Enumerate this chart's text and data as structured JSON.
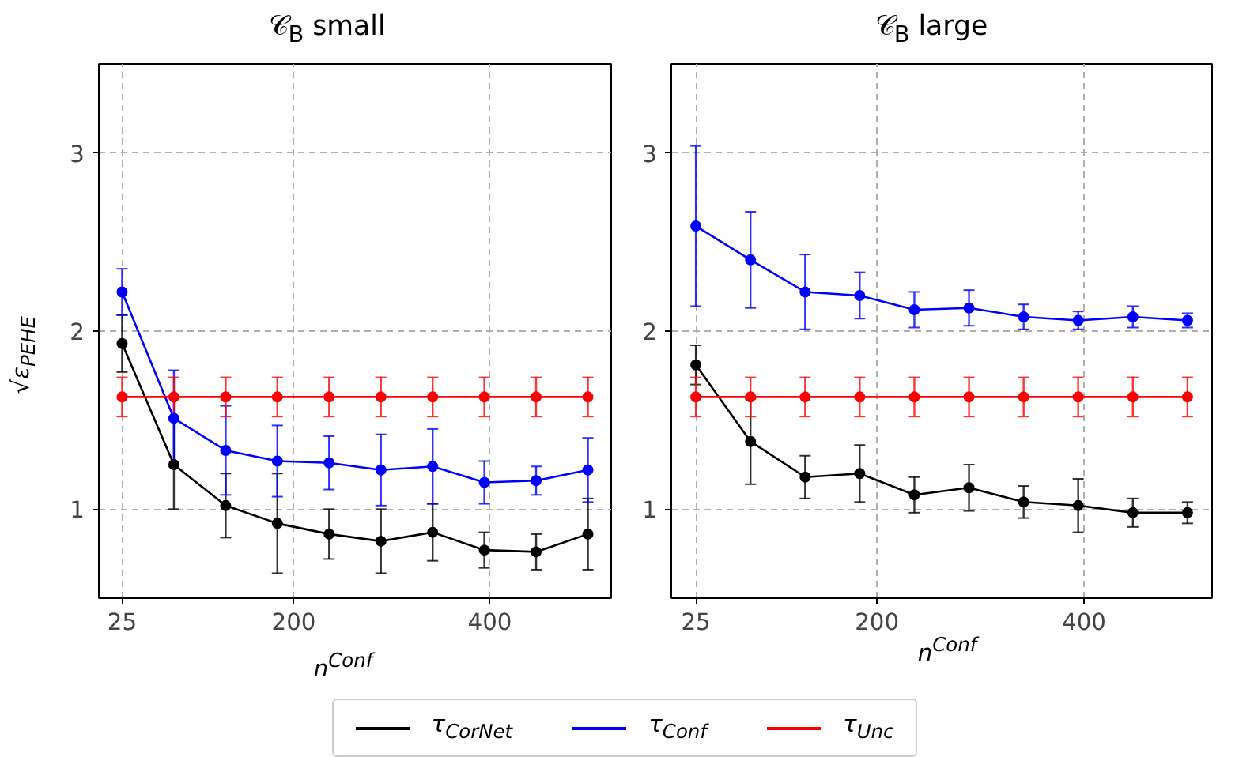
{
  "chart_data": [
    {
      "type": "line",
      "title": "𝒞$_{B}$ small",
      "xlabel": "n$^{Conf}$",
      "ylabel": "√ε$_{PEHE}$",
      "x": [
        25,
        77.8,
        130.6,
        183.3,
        236.1,
        288.9,
        341.7,
        394.4,
        447.2,
        500
      ],
      "xlim": [
        1.25,
        523.75
      ],
      "xticks": [
        25,
        200,
        400
      ],
      "ylim": [
        0.5,
        3.5
      ],
      "yticks": [
        1,
        2,
        3
      ],
      "grid": true,
      "marker": "circle",
      "line_style": "solid",
      "legend": "bottom",
      "series": [
        {
          "name": "τ$_{CorNet}$",
          "color": "#000000",
          "values": [
            1.93,
            1.25,
            1.02,
            0.92,
            0.86,
            0.82,
            0.87,
            0.77,
            0.76,
            0.86
          ],
          "errors": [
            0.16,
            0.25,
            0.18,
            0.28,
            0.14,
            0.18,
            0.16,
            0.1,
            0.1,
            0.2
          ]
        },
        {
          "name": "τ$_{Conf}$",
          "color": "#0000ff",
          "values": [
            2.22,
            1.51,
            1.33,
            1.27,
            1.26,
            1.22,
            1.24,
            1.15,
            1.16,
            1.22
          ],
          "errors": [
            0.13,
            0.27,
            0.25,
            0.2,
            0.15,
            0.2,
            0.21,
            0.12,
            0.08,
            0.18
          ]
        },
        {
          "name": "τ$_{Unc}$",
          "color": "#ff0000",
          "values": [
            1.63,
            1.63,
            1.63,
            1.63,
            1.63,
            1.63,
            1.63,
            1.63,
            1.63,
            1.63
          ],
          "errors": [
            0.11,
            0.11,
            0.11,
            0.11,
            0.11,
            0.11,
            0.11,
            0.11,
            0.11,
            0.11
          ]
        }
      ]
    },
    {
      "type": "line",
      "title": "𝒞$_{B}$ large",
      "xlabel": "n$^{Conf}$",
      "x": [
        25,
        77.8,
        130.6,
        183.3,
        236.1,
        288.9,
        341.7,
        394.4,
        447.2,
        500
      ],
      "xlim": [
        1.25,
        523.75
      ],
      "xticks": [
        25,
        200,
        400
      ],
      "ylim": [
        0.5,
        3.5
      ],
      "yticks": [
        1,
        2,
        3
      ],
      "grid": true,
      "marker": "circle",
      "line_style": "solid",
      "series": [
        {
          "color": "#000000",
          "values": [
            1.81,
            1.38,
            1.18,
            1.2,
            1.08,
            1.12,
            1.04,
            1.02,
            0.98,
            0.98
          ],
          "errors": [
            0.11,
            0.24,
            0.12,
            0.16,
            0.1,
            0.13,
            0.09,
            0.15,
            0.08,
            0.06
          ]
        },
        {
          "color": "#0000ff",
          "values": [
            2.59,
            2.4,
            2.22,
            2.2,
            2.12,
            2.13,
            2.08,
            2.06,
            2.08,
            2.06
          ],
          "errors": [
            0.45,
            0.27,
            0.21,
            0.13,
            0.1,
            0.1,
            0.07,
            0.05,
            0.06,
            0.04
          ]
        },
        {
          "color": "#ff0000",
          "values": [
            1.63,
            1.63,
            1.63,
            1.63,
            1.63,
            1.63,
            1.63,
            1.63,
            1.63,
            1.63
          ],
          "errors": [
            0.11,
            0.11,
            0.11,
            0.11,
            0.11,
            0.11,
            0.11,
            0.11,
            0.11,
            0.11
          ]
        }
      ]
    }
  ]
}
